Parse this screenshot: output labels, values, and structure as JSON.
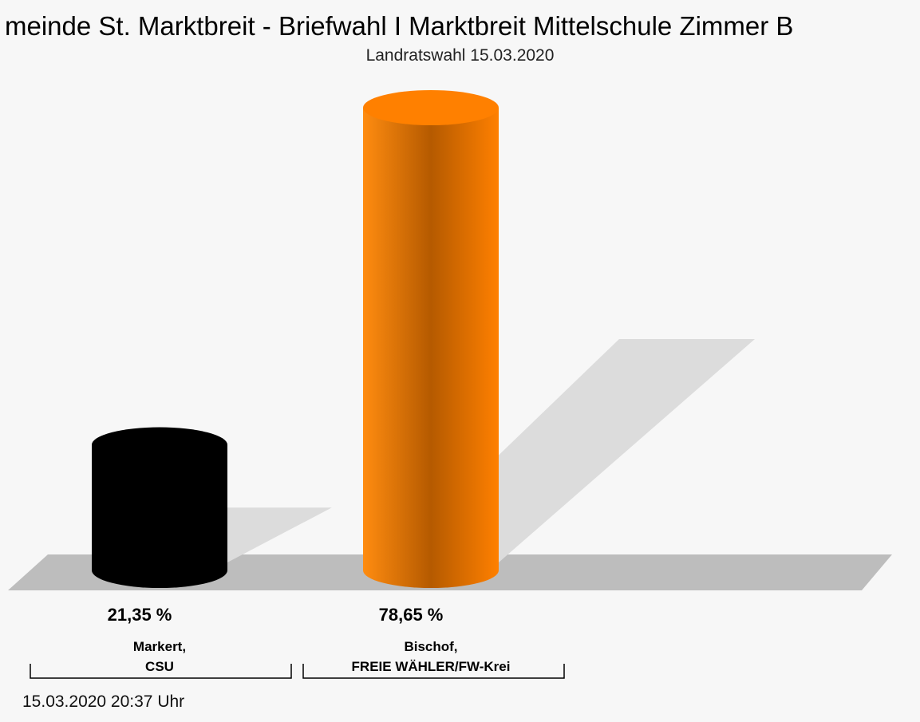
{
  "chart_data": {
    "type": "bar3d",
    "title": "meinde St. Marktbreit - Briefwahl I Marktbreit Mittelschule Zimmer B",
    "subtitle": "Landratswahl 15.03.2020",
    "categories": [
      "Markert,\nCSU",
      "Bischof,\nFREIE WÄHLER/FW-Krei"
    ],
    "values": [
      21.35,
      78.65
    ],
    "value_labels": [
      "21,35 %",
      "78,65 %"
    ],
    "colors": [
      "#000000",
      "#ff8000"
    ],
    "footer": "15.03.2020 20:37 Uhr"
  }
}
